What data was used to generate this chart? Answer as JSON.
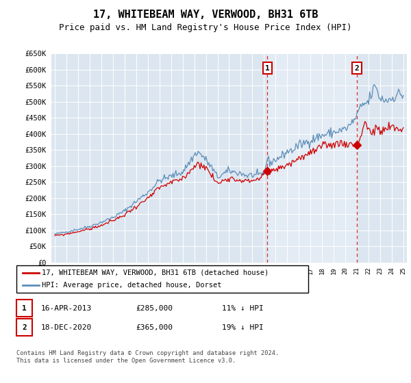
{
  "title": "17, WHITEBEAM WAY, VERWOOD, BH31 6TB",
  "subtitle": "Price paid vs. HM Land Registry's House Price Index (HPI)",
  "legend_line1": "17, WHITEBEAM WAY, VERWOOD, BH31 6TB (detached house)",
  "legend_line2": "HPI: Average price, detached house, Dorset",
  "annotation1_date": "16-APR-2013",
  "annotation1_price": "£285,000",
  "annotation1_hpi": "11% ↓ HPI",
  "annotation2_date": "18-DEC-2020",
  "annotation2_price": "£365,000",
  "annotation2_hpi": "19% ↓ HPI",
  "footer": "Contains HM Land Registry data © Crown copyright and database right 2024.\nThis data is licensed under the Open Government Licence v3.0.",
  "hpi_color": "#5b8db8",
  "price_color": "#cc0000",
  "plot_bg_color": "#dce6f0",
  "highlight_bg_color": "#e8eff7",
  "ylim": [
    0,
    650000
  ],
  "yticks": [
    0,
    50000,
    100000,
    150000,
    200000,
    250000,
    300000,
    350000,
    400000,
    450000,
    500000,
    550000,
    600000,
    650000
  ],
  "sale1_year": 2013.3,
  "sale1_value": 285000,
  "sale2_year": 2021.0,
  "sale2_value": 365000,
  "xlim_start": 1994.7,
  "xlim_end": 2025.3
}
